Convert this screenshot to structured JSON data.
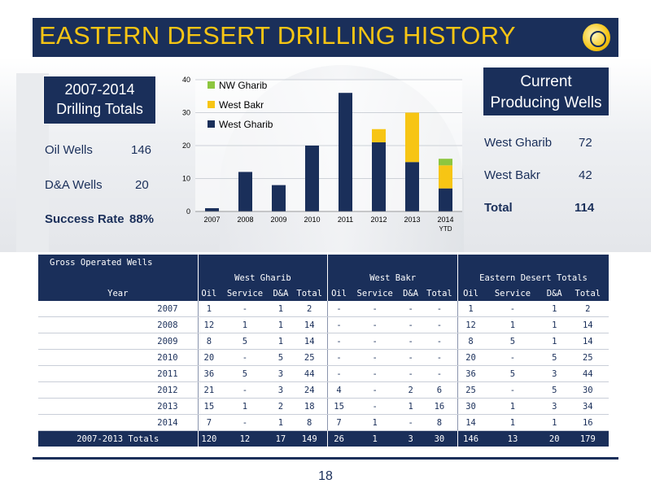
{
  "header": {
    "title": "EASTERN DESERT DRILLING HISTORY"
  },
  "totals_box": {
    "title_line1": "2007-2014",
    "title_line2": "Drilling Totals",
    "oil_label": "Oil Wells",
    "oil_value": "146",
    "da_label": "D&A Wells",
    "da_value": "20",
    "success_label": "Success Rate",
    "success_value": "88%"
  },
  "producing_box": {
    "title_line1": "Current",
    "title_line2": "Producing Wells",
    "wg_label": "West Gharib",
    "wg_value": "72",
    "wb_label": "West Bakr",
    "wb_value": "42",
    "total_label": "Total",
    "total_value": "114"
  },
  "chart_data": {
    "type": "bar",
    "stacked": true,
    "categories": [
      "2007",
      "2008",
      "2009",
      "2010",
      "2011",
      "2012",
      "2013",
      "2014"
    ],
    "category_sublabels": [
      "",
      "",
      "",
      "",
      "",
      "",
      "",
      "YTD"
    ],
    "series": [
      {
        "name": "West Gharib",
        "values": [
          1,
          12,
          8,
          20,
          36,
          21,
          15,
          7
        ],
        "color": "#1a2f5a"
      },
      {
        "name": "West Bakr",
        "values": [
          0,
          0,
          0,
          0,
          0,
          4,
          15,
          7
        ],
        "color": "#f7c514"
      },
      {
        "name": "NW Gharib",
        "values": [
          0,
          0,
          0,
          0,
          0,
          0,
          0,
          2
        ],
        "color": "#8dc63f"
      }
    ],
    "ylim": [
      0,
      40
    ],
    "yticks": [
      0,
      10,
      20,
      30,
      40
    ],
    "grid": true,
    "legend": "top-left"
  },
  "table": {
    "title": "Gross Operated Wells",
    "year_label": "Year",
    "groups": [
      "West Gharib",
      "West Bakr",
      "Eastern Desert Totals"
    ],
    "subcols": [
      "Oil",
      "Service",
      "D&A",
      "Total"
    ],
    "rows": [
      {
        "year": "2007",
        "cells": [
          "1",
          "-",
          "1",
          "2",
          "-",
          "-",
          "-",
          "-",
          "1",
          "-",
          "1",
          "2"
        ]
      },
      {
        "year": "2008",
        "cells": [
          "12",
          "1",
          "1",
          "14",
          "-",
          "-",
          "-",
          "-",
          "12",
          "1",
          "1",
          "14"
        ]
      },
      {
        "year": "2009",
        "cells": [
          "8",
          "5",
          "1",
          "14",
          "-",
          "-",
          "-",
          "-",
          "8",
          "5",
          "1",
          "14"
        ]
      },
      {
        "year": "2010",
        "cells": [
          "20",
          "-",
          "5",
          "25",
          "-",
          "-",
          "-",
          "-",
          "20",
          "-",
          "5",
          "25"
        ]
      },
      {
        "year": "2011",
        "cells": [
          "36",
          "5",
          "3",
          "44",
          "-",
          "-",
          "-",
          "-",
          "36",
          "5",
          "3",
          "44"
        ]
      },
      {
        "year": "2012",
        "cells": [
          "21",
          "-",
          "3",
          "24",
          "4",
          "-",
          "2",
          "6",
          "25",
          "-",
          "5",
          "30"
        ]
      },
      {
        "year": "2013",
        "cells": [
          "15",
          "1",
          "2",
          "18",
          "15",
          "-",
          "1",
          "16",
          "30",
          "1",
          "3",
          "34"
        ]
      },
      {
        "year": "2014",
        "cells": [
          "7",
          "-",
          "1",
          "8",
          "7",
          "1",
          "-",
          "8",
          "14",
          "1",
          "1",
          "16"
        ]
      }
    ],
    "total_row": {
      "label": "2007-2013 Totals",
      "cells": [
        "120",
        "12",
        "17",
        "149",
        "26",
        "1",
        "3",
        "30",
        "146",
        "13",
        "20",
        "179"
      ]
    }
  },
  "footer": {
    "page_number": "18"
  }
}
